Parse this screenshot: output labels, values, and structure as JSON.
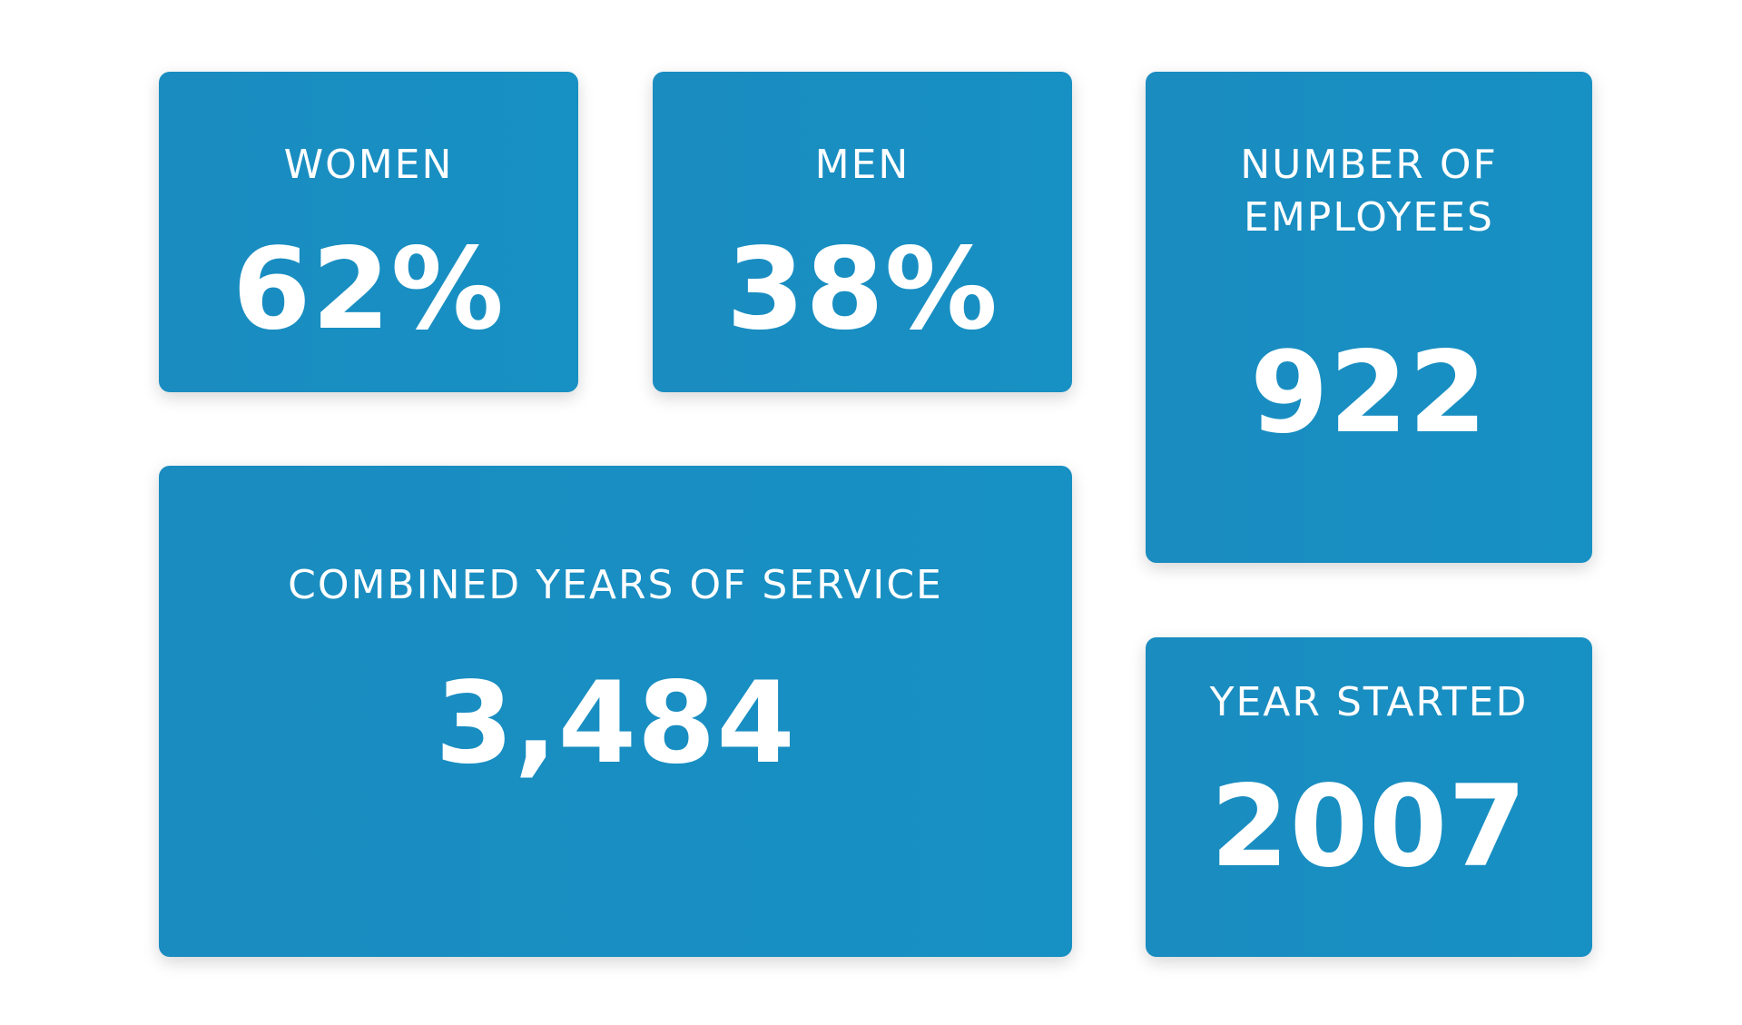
{
  "cards": {
    "women": {
      "label": "WOMEN",
      "value": "62%"
    },
    "men": {
      "label": "MEN",
      "value": "38%"
    },
    "employees": {
      "label": "NUMBER OF EMPLOYEES",
      "value": "922"
    },
    "service": {
      "label": "COMBINED YEARS OF SERVICE",
      "value": "3,484"
    },
    "year_started": {
      "label": "YEAR STARTED",
      "value": "2007"
    }
  },
  "colors": {
    "card_background": "#1790c3",
    "text": "#ffffff",
    "page_background": "#ffffff"
  }
}
